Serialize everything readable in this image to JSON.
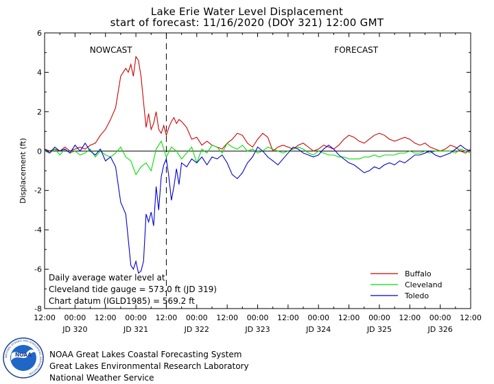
{
  "chart_data": {
    "type": "line",
    "title": "Lake Erie Water Level Displacement",
    "subtitle": "start of forecast: 11/16/2020 (DOY 321) 12:00 GMT",
    "ylabel": "Displacement (ft)",
    "xlabel": "",
    "xlim": [
      0,
      168
    ],
    "ylim": [
      -8,
      6
    ],
    "yticks": [
      -8,
      -6,
      -4,
      -2,
      0,
      2,
      4,
      6
    ],
    "ytick_labels": [
      "-8",
      "-6",
      "-4",
      "-2",
      "0",
      "2",
      "4",
      "6"
    ],
    "xtick_hours": [
      0,
      12,
      24,
      36,
      48,
      60,
      72,
      84,
      96,
      108,
      120,
      132,
      144,
      156,
      168
    ],
    "xtick_labels": [
      "12:00",
      "00:00",
      "12:00",
      "00:00",
      "12:00",
      "00:00",
      "12:00",
      "00:00",
      "12:00",
      "00:00",
      "12:00",
      "00:00",
      "12:00",
      "00:00",
      "12:00"
    ],
    "day_labels": [
      {
        "hour": 12,
        "label": "JD 320"
      },
      {
        "hour": 36,
        "label": "JD 321"
      },
      {
        "hour": 60,
        "label": "JD 322"
      },
      {
        "hour": 84,
        "label": "JD 323"
      },
      {
        "hour": 108,
        "label": "JD 324"
      },
      {
        "hour": 132,
        "label": "JD 325"
      },
      {
        "hour": 156,
        "label": "JD 326"
      }
    ],
    "forecast_start_hour": 48,
    "period_labels": {
      "nowcast": "NOWCAST",
      "forecast": "FORECAST"
    },
    "series": [
      {
        "name": "Buffalo",
        "color": "#cc0000",
        "x": [
          0,
          2,
          4,
          6,
          8,
          10,
          12,
          14,
          16,
          18,
          20,
          22,
          24,
          26,
          28,
          30,
          32,
          33,
          34,
          35,
          36,
          37,
          38,
          39,
          40,
          41,
          42,
          43,
          44,
          45,
          46,
          47,
          48,
          49,
          50,
          51,
          52,
          53,
          54,
          56,
          58,
          60,
          62,
          64,
          66,
          68,
          70,
          72,
          74,
          76,
          78,
          80,
          82,
          84,
          86,
          88,
          90,
          92,
          94,
          96,
          98,
          100,
          102,
          104,
          106,
          108,
          110,
          112,
          114,
          116,
          118,
          120,
          122,
          124,
          126,
          128,
          130,
          132,
          134,
          136,
          138,
          140,
          142,
          144,
          146,
          148,
          150,
          152,
          154,
          156,
          158,
          160,
          162,
          164,
          166,
          168
        ],
        "values": [
          0.1,
          0.0,
          0.1,
          0.0,
          0.2,
          0.0,
          0.1,
          0.2,
          0.1,
          0.3,
          0.4,
          0.8,
          1.1,
          1.6,
          2.2,
          3.8,
          4.2,
          4.0,
          4.4,
          3.8,
          4.8,
          4.6,
          3.8,
          2.5,
          1.2,
          1.9,
          1.1,
          1.4,
          2.0,
          1.1,
          0.9,
          1.3,
          0.8,
          1.2,
          1.5,
          1.7,
          1.4,
          1.6,
          1.5,
          1.2,
          0.6,
          0.7,
          0.3,
          0.5,
          0.3,
          0.2,
          0.1,
          0.4,
          0.6,
          0.9,
          0.8,
          0.4,
          0.2,
          0.6,
          0.9,
          0.7,
          0.0,
          0.2,
          0.3,
          0.2,
          0.1,
          0.3,
          0.4,
          0.2,
          0.0,
          0.1,
          0.3,
          0.2,
          0.1,
          0.3,
          0.6,
          0.8,
          0.7,
          0.5,
          0.4,
          0.6,
          0.8,
          0.9,
          0.8,
          0.6,
          0.5,
          0.6,
          0.7,
          0.6,
          0.4,
          0.3,
          0.4,
          0.2,
          0.1,
          0.0,
          0.1,
          0.3,
          0.2,
          0.0,
          -0.1,
          0.1
        ]
      },
      {
        "name": "Cleveland",
        "color": "#00dd00",
        "x": [
          0,
          2,
          4,
          6,
          8,
          10,
          12,
          14,
          16,
          18,
          20,
          22,
          24,
          26,
          28,
          30,
          32,
          34,
          36,
          38,
          40,
          42,
          44,
          46,
          48,
          50,
          52,
          54,
          56,
          58,
          60,
          62,
          64,
          66,
          68,
          70,
          72,
          74,
          76,
          78,
          80,
          82,
          84,
          86,
          88,
          90,
          92,
          94,
          96,
          98,
          100,
          102,
          104,
          106,
          108,
          110,
          112,
          114,
          116,
          118,
          120,
          122,
          124,
          126,
          128,
          130,
          132,
          134,
          136,
          138,
          140,
          142,
          144,
          146,
          148,
          150,
          152,
          154,
          156,
          158,
          160,
          162,
          164,
          166,
          168
        ],
        "values": [
          0.0,
          -0.1,
          0.1,
          -0.2,
          0.1,
          -0.1,
          0.0,
          -0.2,
          -0.1,
          0.1,
          -0.3,
          0.0,
          -0.2,
          -0.3,
          -0.1,
          0.2,
          -0.3,
          -0.5,
          -1.2,
          -0.8,
          -0.6,
          -1.0,
          0.1,
          0.5,
          -0.3,
          0.2,
          0.0,
          -0.4,
          -0.1,
          0.2,
          -0.6,
          0.1,
          -0.1,
          0.3,
          0.2,
          -0.1,
          0.4,
          0.2,
          0.1,
          0.3,
          0.0,
          0.1,
          -0.1,
          0.0,
          0.2,
          0.1,
          0.0,
          -0.1,
          0.0,
          0.1,
          0.2,
          0.1,
          -0.1,
          -0.2,
          0.0,
          -0.1,
          -0.2,
          -0.2,
          -0.3,
          -0.3,
          -0.4,
          -0.4,
          -0.4,
          -0.3,
          -0.3,
          -0.2,
          -0.3,
          -0.2,
          -0.2,
          -0.2,
          -0.1,
          -0.1,
          0.0,
          -0.1,
          -0.1,
          0.0,
          -0.1,
          0.0,
          0.0,
          0.0,
          0.0,
          -0.1,
          0.1,
          0.0,
          -0.1
        ]
      },
      {
        "name": "Toledo",
        "color": "#0000cc",
        "x": [
          0,
          2,
          4,
          6,
          8,
          10,
          12,
          14,
          16,
          18,
          20,
          22,
          24,
          26,
          28,
          30,
          32,
          34,
          35,
          36,
          37,
          38,
          39,
          40,
          41,
          42,
          43,
          44,
          45,
          46,
          47,
          48,
          49,
          50,
          51,
          52,
          53,
          54,
          56,
          58,
          60,
          62,
          64,
          66,
          68,
          70,
          72,
          74,
          76,
          78,
          80,
          82,
          84,
          86,
          88,
          90,
          92,
          94,
          96,
          98,
          100,
          102,
          104,
          106,
          108,
          110,
          112,
          114,
          116,
          118,
          120,
          122,
          124,
          126,
          128,
          130,
          132,
          134,
          136,
          138,
          140,
          142,
          144,
          146,
          148,
          150,
          152,
          154,
          156,
          158,
          160,
          162,
          164,
          166,
          168
        ],
        "values": [
          0.1,
          -0.1,
          0.2,
          0.0,
          0.1,
          -0.1,
          0.3,
          0.0,
          0.4,
          0.0,
          -0.2,
          0.1,
          -0.5,
          -0.3,
          -0.8,
          -2.6,
          -3.2,
          -5.8,
          -6.0,
          -5.6,
          -6.2,
          -6.1,
          -5.6,
          -3.2,
          -3.6,
          -3.1,
          -3.8,
          -1.8,
          -3.0,
          -1.3,
          -0.7,
          -0.4,
          -1.3,
          -2.5,
          -1.8,
          -0.9,
          -1.7,
          -0.6,
          -0.8,
          -0.4,
          -0.6,
          -0.3,
          -0.7,
          -0.3,
          -0.4,
          -0.2,
          -0.6,
          -1.2,
          -1.4,
          -1.1,
          -0.6,
          -0.3,
          0.2,
          0.0,
          -0.3,
          -0.5,
          -0.7,
          -0.4,
          -0.1,
          0.2,
          0.1,
          -0.1,
          -0.2,
          -0.3,
          -0.2,
          0.1,
          0.3,
          0.1,
          -0.2,
          -0.4,
          -0.6,
          -0.7,
          -0.9,
          -1.1,
          -1.0,
          -0.8,
          -0.9,
          -0.7,
          -0.6,
          -0.7,
          -0.5,
          -0.6,
          -0.4,
          -0.2,
          -0.2,
          -0.1,
          0.0,
          -0.2,
          -0.3,
          -0.2,
          -0.1,
          0.1,
          0.3,
          0.1,
          0.0
        ]
      }
    ],
    "annotation_lines": [
      "Daily average water level at",
      "Cleveland tide gauge = 573.0 ft (JD 319)",
      "Chart datum (IGLD1985) = 569.2 ft"
    ],
    "legend_position": "bottom-right"
  },
  "logo": {
    "text": "NOAA",
    "ring_text": "NATIONAL OCEANIC AND ATMOSPHERIC ADMINISTRATION"
  },
  "credits": [
    "NOAA Great Lakes Coastal Forecasting System",
    "Great Lakes Environmental Research Laboratory",
    "National Weather Service"
  ]
}
